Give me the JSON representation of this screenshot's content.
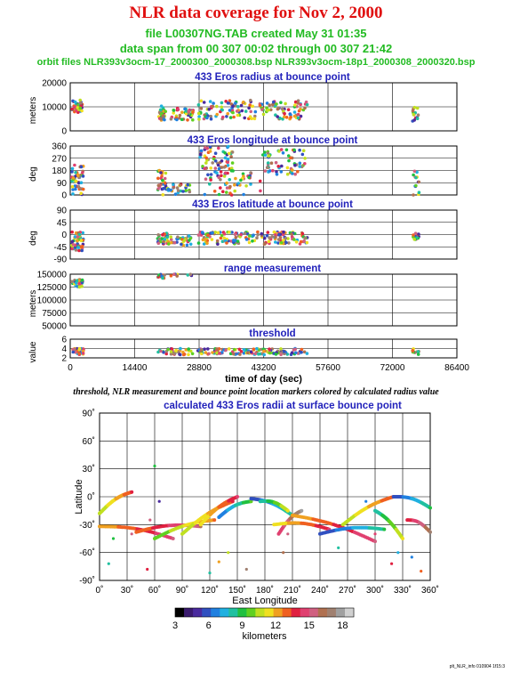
{
  "header": {
    "title": "NLR data coverage for Nov 2, 2000",
    "file_line": "file L00307NG.TAB created May 31 01:35",
    "span_line": "data span from 00 307 00:02 through 00 307 21:42",
    "orbit_line": "orbit files NLR393v3ocm-17_2000300_2000308.bsp NLR393v3ocm-18p1_2000308_2000320.bsp"
  },
  "caption": "threshold, NLR measurement and bounce point location markers colored by calculated radius value",
  "footer": "plt_NLR_info 010904 1f15:3",
  "colors": {
    "title": "#e01010",
    "subtitle": "#22bb22",
    "panel_title": "#2222bb"
  },
  "chart_data": [
    {
      "type": "scatter",
      "title": "433 Eros radius at bounce point",
      "ylabel": "meters",
      "xlim": [
        0,
        86400
      ],
      "ylim": [
        0,
        25000
      ],
      "yticks": [
        "20000",
        "10000",
        "0"
      ],
      "grid": true,
      "clusters": [
        {
          "x": [
            400,
            2700
          ],
          "y": [
            9000,
            16000
          ],
          "n": 40
        },
        {
          "x": [
            19800,
            21400
          ],
          "y": [
            5500,
            13000
          ],
          "n": 30
        },
        {
          "x": [
            22500,
            27500
          ],
          "y": [
            5500,
            12000
          ],
          "n": 40
        },
        {
          "x": [
            28500,
            53000
          ],
          "y": [
            6000,
            16000
          ],
          "n": 150
        },
        {
          "x": [
            76500,
            78000
          ],
          "y": [
            5000,
            13000
          ],
          "n": 14
        }
      ]
    },
    {
      "type": "scatter",
      "title": "433 Eros longitude at bounce point",
      "ylabel": "deg",
      "xlim": [
        0,
        86400
      ],
      "ylim": [
        0,
        360
      ],
      "yticks": [
        "360",
        "270",
        "180",
        "90",
        "0"
      ],
      "grid": true,
      "clusters": [
        {
          "x": [
            300,
            3000
          ],
          "y": [
            0,
            220
          ],
          "n": 45
        },
        {
          "x": [
            19500,
            21500
          ],
          "y": [
            0,
            190
          ],
          "n": 30
        },
        {
          "x": [
            21500,
            27000
          ],
          "y": [
            0,
            80
          ],
          "n": 30
        },
        {
          "x": [
            29000,
            36500
          ],
          "y": [
            190,
            360
          ],
          "n": 60
        },
        {
          "x": [
            30000,
            42500
          ],
          "y": [
            0,
            180
          ],
          "n": 55
        },
        {
          "x": [
            43000,
            52500
          ],
          "y": [
            150,
            340
          ],
          "n": 60
        },
        {
          "x": [
            76500,
            78000
          ],
          "y": [
            0,
            180
          ],
          "n": 14
        }
      ]
    },
    {
      "type": "scatter",
      "title": "433 Eros latitude at bounce point",
      "ylabel": "deg",
      "xlim": [
        0,
        86400
      ],
      "ylim": [
        -90,
        90
      ],
      "yticks": [
        "90",
        "45",
        "0",
        "-45",
        "-90"
      ],
      "grid": true,
      "clusters": [
        {
          "x": [
            300,
            3000
          ],
          "y": [
            -60,
            10
          ],
          "n": 45
        },
        {
          "x": [
            19500,
            22000
          ],
          "y": [
            -35,
            5
          ],
          "n": 35
        },
        {
          "x": [
            22000,
            27500
          ],
          "y": [
            -40,
            0
          ],
          "n": 30
        },
        {
          "x": [
            28500,
            53000
          ],
          "y": [
            -35,
            10
          ],
          "n": 160
        },
        {
          "x": [
            76500,
            78000
          ],
          "y": [
            -30,
            5
          ],
          "n": 14
        }
      ]
    },
    {
      "type": "scatter",
      "title": "range measurement",
      "ylabel": "meters",
      "xlim": [
        0,
        86400
      ],
      "ylim": [
        50000,
        150000
      ],
      "yticks": [
        "150000",
        "125000",
        "100000",
        "75000",
        "50000"
      ],
      "grid": true,
      "clusters": [
        {
          "x": [
            300,
            2800
          ],
          "y": [
            125000,
            140000
          ],
          "n": 30
        },
        {
          "x": [
            19500,
            21500
          ],
          "y": [
            142000,
            150000
          ],
          "n": 12
        },
        {
          "x": [
            22500,
            27500
          ],
          "y": [
            146000,
            150000
          ],
          "n": 8
        }
      ]
    },
    {
      "type": "scatter",
      "title": "threshold",
      "ylabel": "value",
      "xlabel": "time of day (sec)",
      "xlim": [
        0,
        86400
      ],
      "ylim": [
        0,
        6
      ],
      "yticks": [
        "6",
        "4",
        "2"
      ],
      "xticks": [
        "0",
        "14400",
        "28800",
        "43200",
        "57600",
        "72000",
        "86400"
      ],
      "grid": true,
      "clusters": [
        {
          "x": [
            300,
            3000
          ],
          "y": [
            1,
            3
          ],
          "n": 30
        },
        {
          "x": [
            19500,
            27500
          ],
          "y": [
            1,
            3
          ],
          "n": 40
        },
        {
          "x": [
            28500,
            53000
          ],
          "y": [
            1,
            3
          ],
          "n": 120
        },
        {
          "x": [
            76500,
            78000
          ],
          "y": [
            1,
            3
          ],
          "n": 10
        }
      ]
    },
    {
      "type": "scatter",
      "title": "calculated 433 Eros radii at surface bounce point",
      "xlabel": "East Longitude",
      "ylabel": "Latitude",
      "xlim": [
        0,
        360
      ],
      "ylim": [
        -90,
        90
      ],
      "xticks": [
        "0˚",
        "30˚",
        "60˚",
        "90˚",
        "120˚",
        "150˚",
        "180˚",
        "210˚",
        "240˚",
        "270˚",
        "300˚",
        "330˚",
        "360˚"
      ],
      "yticks": [
        "90˚",
        "60˚",
        "30˚",
        "0˚",
        "-30˚",
        "-60˚",
        "-90˚"
      ],
      "grid": true,
      "tracks": [
        {
          "from": [
            0,
            -18
          ],
          "to": [
            35,
            5
          ],
          "n": 40
        },
        {
          "from": [
            0,
            -32
          ],
          "to": [
            80,
            -45
          ],
          "n": 40
        },
        {
          "from": [
            40,
            -38
          ],
          "to": [
            110,
            -32
          ],
          "n": 40
        },
        {
          "from": [
            60,
            -45
          ],
          "to": [
            125,
            -25
          ],
          "n": 35
        },
        {
          "from": [
            90,
            -40
          ],
          "to": [
            145,
            -5
          ],
          "n": 40
        },
        {
          "from": [
            110,
            -30
          ],
          "to": [
            150,
            0
          ],
          "n": 35
        },
        {
          "from": [
            130,
            -22
          ],
          "to": [
            165,
            -5
          ],
          "n": 30
        },
        {
          "from": [
            165,
            -2
          ],
          "to": [
            210,
            -20
          ],
          "n": 40
        },
        {
          "from": [
            175,
            -5
          ],
          "to": [
            205,
            -15
          ],
          "n": 30
        },
        {
          "from": [
            195,
            -40
          ],
          "to": [
            220,
            -15
          ],
          "n": 25
        },
        {
          "from": [
            190,
            -30
          ],
          "to": [
            250,
            -35
          ],
          "n": 35
        },
        {
          "from": [
            210,
            -20
          ],
          "to": [
            300,
            -48
          ],
          "n": 45
        },
        {
          "from": [
            240,
            -40
          ],
          "to": [
            310,
            -35
          ],
          "n": 40
        },
        {
          "from": [
            265,
            -30
          ],
          "to": [
            320,
            0
          ],
          "n": 40
        },
        {
          "from": [
            300,
            -15
          ],
          "to": [
            330,
            -45
          ],
          "n": 35
        },
        {
          "from": [
            320,
            0
          ],
          "to": [
            360,
            -12
          ],
          "n": 35
        },
        {
          "from": [
            335,
            -25
          ],
          "to": [
            360,
            -38
          ],
          "n": 20
        }
      ],
      "scattered_points": [
        [
          10,
          -72
        ],
        [
          15,
          -45
        ],
        [
          35,
          -40
        ],
        [
          60,
          33
        ],
        [
          55,
          -25
        ],
        [
          52,
          -78
        ],
        [
          130,
          -70
        ],
        [
          160,
          -78
        ],
        [
          120,
          -82
        ],
        [
          200,
          -60
        ],
        [
          205,
          -40
        ],
        [
          260,
          -55
        ],
        [
          290,
          -5
        ],
        [
          300,
          -40
        ],
        [
          325,
          -60
        ],
        [
          340,
          -65
        ],
        [
          318,
          -72
        ],
        [
          350,
          -80
        ],
        [
          65,
          -5
        ],
        [
          140,
          -60
        ]
      ]
    }
  ],
  "colorbar": {
    "label": "kilometers",
    "ticks": [
      "3",
      "6",
      "9",
      "12",
      "15",
      "18"
    ],
    "range": [
      3,
      19
    ],
    "colors": [
      "#000000",
      "#3a1a6e",
      "#4a2a9e",
      "#3050c0",
      "#2080e0",
      "#20b0e0",
      "#20c0a0",
      "#20c040",
      "#60d020",
      "#c0e020",
      "#f0e020",
      "#f0a020",
      "#f06020",
      "#e02040",
      "#e04070",
      "#d06080",
      "#b07050",
      "#a08070",
      "#a0a0a0",
      "#d0d0d0"
    ]
  }
}
